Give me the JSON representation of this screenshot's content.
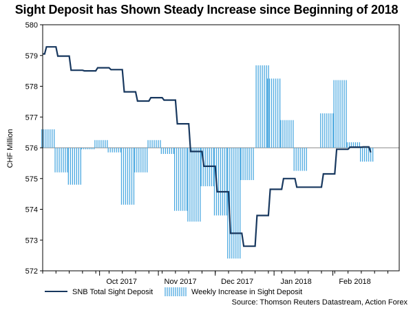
{
  "chart_data": {
    "type": "line+bar",
    "title": "Sight Deposit has Shown Steady Increase since Beginning of 2018",
    "ylabel": "CHF Million",
    "ylim": [
      572,
      580
    ],
    "yticks": [
      572,
      573,
      574,
      575,
      576,
      577,
      578,
      579,
      580
    ],
    "xlim": [
      "2017-09-01",
      "2018-03-08"
    ],
    "xticks": [
      {
        "label": "Oct 2017",
        "date": "2017-10-01"
      },
      {
        "label": "Nov 2017",
        "date": "2017-11-01"
      },
      {
        "label": "Dec 2017",
        "date": "2017-12-01"
      },
      {
        "label": "Jan 2018",
        "date": "2018-01-01"
      },
      {
        "label": "Feb 2018",
        "date": "2018-02-01"
      }
    ],
    "baseline": 576,
    "line_series": {
      "name": "SNB Total Sight Deposit",
      "color": "#17375e",
      "points": [
        [
          "2017-09-01",
          579.05
        ],
        [
          "2017-09-02",
          579.05
        ],
        [
          "2017-09-03",
          579.28
        ],
        [
          "2017-09-08",
          579.28
        ],
        [
          "2017-09-09",
          578.98
        ],
        [
          "2017-09-15",
          578.98
        ],
        [
          "2017-09-16",
          578.52
        ],
        [
          "2017-09-22",
          578.52
        ],
        [
          "2017-09-23",
          578.5
        ],
        [
          "2017-09-29",
          578.5
        ],
        [
          "2017-09-30",
          578.6
        ],
        [
          "2017-10-06",
          578.6
        ],
        [
          "2017-10-07",
          578.54
        ],
        [
          "2017-10-13",
          578.54
        ],
        [
          "2017-10-14",
          577.82
        ],
        [
          "2017-10-20",
          577.82
        ],
        [
          "2017-10-21",
          577.52
        ],
        [
          "2017-10-27",
          577.52
        ],
        [
          "2017-10-28",
          577.63
        ],
        [
          "2017-11-03",
          577.63
        ],
        [
          "2017-11-04",
          577.55
        ],
        [
          "2017-11-10",
          577.55
        ],
        [
          "2017-11-11",
          576.78
        ],
        [
          "2017-11-17",
          576.78
        ],
        [
          "2017-11-18",
          575.88
        ],
        [
          "2017-11-24",
          575.88
        ],
        [
          "2017-11-25",
          575.4
        ],
        [
          "2017-12-01",
          575.4
        ],
        [
          "2017-12-02",
          574.57
        ],
        [
          "2017-12-08",
          574.57
        ],
        [
          "2017-12-09",
          573.22
        ],
        [
          "2017-12-15",
          573.22
        ],
        [
          "2017-12-16",
          572.8
        ],
        [
          "2017-12-22",
          572.8
        ],
        [
          "2017-12-23",
          573.8
        ],
        [
          "2017-12-29",
          573.8
        ],
        [
          "2017-12-30",
          574.65
        ],
        [
          "2018-01-05",
          574.65
        ],
        [
          "2018-01-06",
          575.0
        ],
        [
          "2018-01-12",
          575.0
        ],
        [
          "2018-01-13",
          574.72
        ],
        [
          "2018-01-19",
          574.72
        ],
        [
          "2018-01-26",
          574.72
        ],
        [
          "2018-01-27",
          575.15
        ],
        [
          "2018-02-02",
          575.15
        ],
        [
          "2018-02-03",
          575.95
        ],
        [
          "2018-02-09",
          575.95
        ],
        [
          "2018-02-10",
          576.02
        ],
        [
          "2018-02-16",
          576.02
        ],
        [
          "2018-02-17",
          576.03
        ],
        [
          "2018-02-20",
          576.03
        ],
        [
          "2018-02-21",
          575.85
        ]
      ]
    },
    "bar_series": {
      "name": "Weekly Increase in Sight Deposit",
      "color": "#4aa8e0",
      "bars": [
        [
          "2017-09-04",
          576.6
        ],
        [
          "2017-09-11",
          575.2
        ],
        [
          "2017-09-18",
          574.8
        ],
        [
          "2017-09-25",
          575.95
        ],
        [
          "2017-10-02",
          576.25
        ],
        [
          "2017-10-09",
          575.85
        ],
        [
          "2017-10-16",
          574.15
        ],
        [
          "2017-10-23",
          575.2
        ],
        [
          "2017-10-30",
          576.25
        ],
        [
          "2017-11-06",
          575.8
        ],
        [
          "2017-11-13",
          573.95
        ],
        [
          "2017-11-20",
          573.6
        ],
        [
          "2017-11-27",
          574.75
        ],
        [
          "2017-12-04",
          573.8
        ],
        [
          "2017-12-11",
          572.4
        ],
        [
          "2017-12-18",
          574.95
        ],
        [
          "2017-12-26",
          578.68
        ],
        [
          "2018-01-01",
          578.25
        ],
        [
          "2018-01-08",
          576.9
        ],
        [
          "2018-01-15",
          575.25
        ],
        [
          "2018-01-22",
          576.0
        ],
        [
          "2018-01-29",
          577.12
        ],
        [
          "2018-02-05",
          578.2
        ],
        [
          "2018-02-12",
          576.18
        ],
        [
          "2018-02-19",
          575.55
        ]
      ]
    },
    "legend": {
      "placement": "bottom"
    },
    "source": "Source: Thomson Reuters Datastream, Action Forex"
  }
}
